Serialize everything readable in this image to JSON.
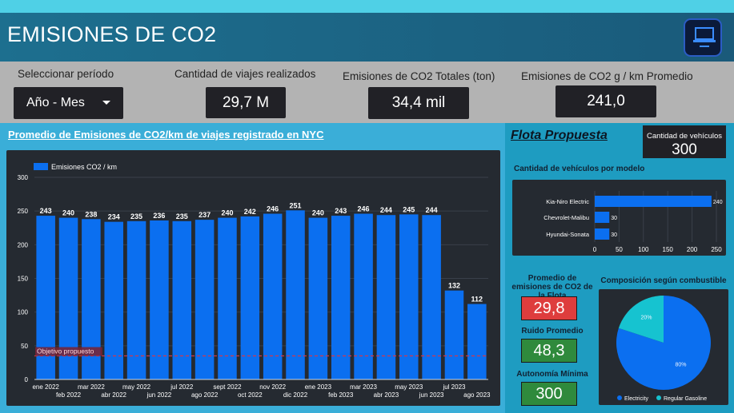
{
  "header": {
    "title": "EMISIONES DE CO2"
  },
  "filters": {
    "period_label": "Seleccionar período",
    "period_value": "Año - Mes",
    "trips_label": "Cantidad de viajes realizados",
    "trips_value": "29,7 M",
    "total_label": "Emisiones de CO2 Totales (ton)",
    "total_value": "34,4 mil",
    "avg_label": "Emisiones de CO2 g / km Promedio",
    "avg_value": "241,0"
  },
  "chart": {
    "title": "Promedio de Emisiones de CO2/km de viajes registrado en NYC",
    "target_label": "Objetivo propuesto"
  },
  "fleet": {
    "title": "Flota Propuesta",
    "vehicles_label": "Cantidad de vehículos",
    "vehicles_value": "300",
    "model_chart_title": "Cantidad de vehículos por modelo",
    "avg_emissions_label": "Promedio de emisiones de CO2 de la Flota",
    "avg_emissions_value": "29,8",
    "noise_label": "Ruido Promedio",
    "noise_value": "48,3",
    "autonomy_label": "Autonomía Mínima",
    "autonomy_value": "300",
    "pie_title": "Composición según combustible"
  },
  "colors": {
    "bar": "#0b6ff0",
    "pie_a": "#0b6ff0",
    "pie_b": "#16c3d0",
    "red": "#de3d3d",
    "green": "#2f8a3c"
  },
  "chart_data": [
    {
      "type": "bar",
      "title": "Promedio de Emisiones de CO2/km de viajes registrado en NYC",
      "series": [
        {
          "name": "Emisiones CO2 / km",
          "values": [
            243,
            240,
            238,
            234,
            235,
            236,
            235,
            237,
            240,
            242,
            246,
            251,
            240,
            243,
            246,
            244,
            245,
            244,
            132,
            112
          ]
        }
      ],
      "categories": [
        "ene 2022",
        "feb 2022",
        "mar 2022",
        "abr 2022",
        "may 2022",
        "jun 2022",
        "jul 2022",
        "ago 2022",
        "sept 2022",
        "oct 2022",
        "nov 2022",
        "dic 2022",
        "ene 2023",
        "feb 2023",
        "mar 2023",
        "abr 2023",
        "may 2023",
        "jun 2023",
        "jul 2023",
        "ago 2023"
      ],
      "yticks": [
        0,
        50,
        100,
        150,
        200,
        250,
        300
      ],
      "ylim": [
        0,
        300
      ],
      "target": 35
    },
    {
      "type": "bar",
      "orientation": "horizontal",
      "title": "Cantidad de vehículos por modelo",
      "categories": [
        "Kia-Niro Electric",
        "Chevrolet-Malibu",
        "Hyundai-Sonata"
      ],
      "values": [
        240,
        30,
        30
      ],
      "xticks": [
        0,
        50,
        100,
        150,
        200,
        250
      ],
      "xlim": [
        0,
        250
      ]
    },
    {
      "type": "pie",
      "title": "Composición según combustible",
      "labels": [
        "Electricity",
        "Regular Gasoline"
      ],
      "values": [
        80,
        20
      ],
      "value_labels": [
        "80%",
        "20%"
      ]
    }
  ]
}
